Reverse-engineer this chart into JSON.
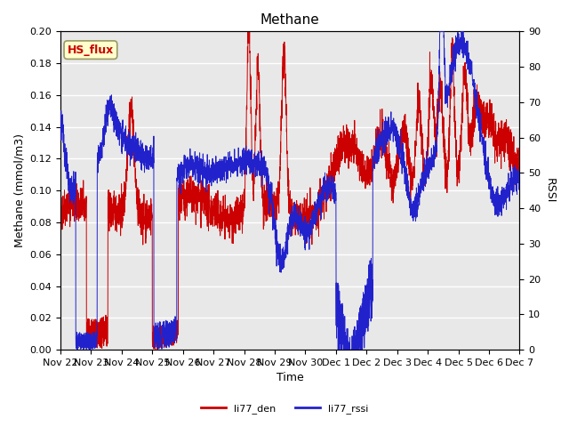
{
  "title": "Methane",
  "ylabel_left": "Methane (mmol/m3)",
  "ylabel_right": "RSSI",
  "xlabel": "Time",
  "ylim_left": [
    0.0,
    0.2
  ],
  "ylim_right": [
    0,
    90
  ],
  "yticks_left": [
    0.0,
    0.02,
    0.04,
    0.06,
    0.08,
    0.1,
    0.12,
    0.14,
    0.16,
    0.18,
    0.2
  ],
  "yticks_right": [
    0,
    10,
    20,
    30,
    40,
    50,
    60,
    70,
    80,
    90
  ],
  "color_red": "#cc0000",
  "color_blue": "#2222cc",
  "bg_color": "#ffffff",
  "plot_bg": "#e8e8e8",
  "legend_label_red": "li77_den",
  "legend_label_blue": "li77_rssi",
  "tag_label": "HS_flux",
  "tag_bg": "#ffffcc",
  "tag_border": "#999966",
  "tag_text_color": "#cc0000",
  "xticklabels": [
    "Nov 22",
    "Nov 23",
    "Nov 24",
    "Nov 25",
    "Nov 26",
    "Nov 27",
    "Nov 28",
    "Nov 29",
    "Nov 30",
    "Dec 1",
    "Dec 2",
    "Dec 3",
    "Dec 4",
    "Dec 5",
    "Dec 6",
    "Dec 7"
  ],
  "num_points": 3600,
  "title_fontsize": 11,
  "axis_label_fontsize": 9,
  "tick_fontsize": 8
}
